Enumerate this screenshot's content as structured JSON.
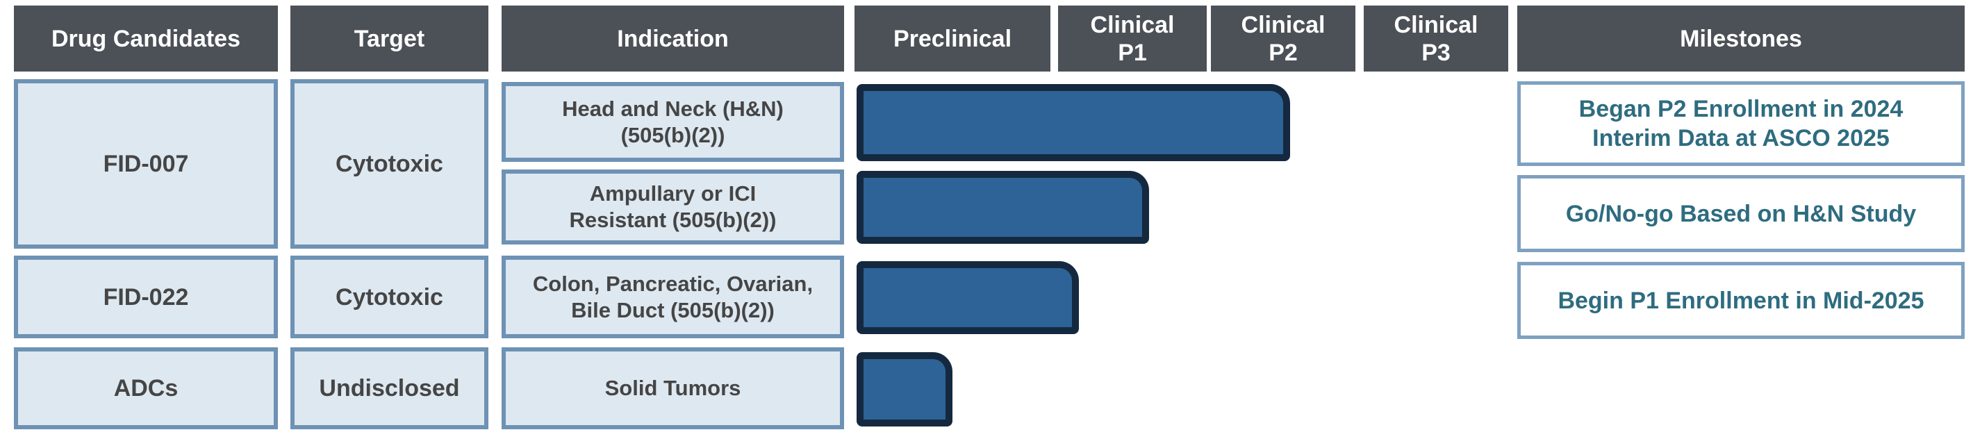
{
  "header": {
    "drug_candidates": "Drug Candidates",
    "target": "Target",
    "indication": "Indication",
    "preclinical": "Preclinical",
    "clinical_p1": "Clinical\nP1",
    "clinical_p2": "Clinical\nP2",
    "clinical_p3": "Clinical\nP3",
    "milestones": "Milestones"
  },
  "chart_data": {
    "type": "bar",
    "title": "Drug development pipeline",
    "x_categories": [
      "Preclinical",
      "Clinical P1",
      "Clinical P2",
      "Clinical P3"
    ],
    "progress_scale_note": "progress is measured in phase-column units: 1.0 = end of Preclinical, 2.0 = end of Clinical P1, 3.0 = end of Clinical P2, 4.0 = end of Clinical P3",
    "rows": [
      {
        "drug": "FID-007",
        "target": "Cytotoxic",
        "programs": [
          {
            "indication": "Head and Neck (H&N)\n(505(b)(2))",
            "progress": 2.55,
            "phase_reached": "Clinical P2",
            "milestone": "Began P2 Enrollment in 2024\nInterim Data at ASCO 2025"
          },
          {
            "indication": "Ampullary or ICI\nResistant (505(b)(2))",
            "progress": 1.61,
            "phase_reached": "Clinical P1",
            "milestone": "Go/No-go Based on H&N Study"
          }
        ]
      },
      {
        "drug": "FID-022",
        "target": "Cytotoxic",
        "programs": [
          {
            "indication": "Colon, Pancreatic, Ovarian,\nBile Duct (505(b)(2))",
            "progress": 1.14,
            "phase_reached": "Clinical P1",
            "milestone": "Begin P1 Enrollment in Mid-2025"
          }
        ]
      },
      {
        "drug": "ADCs",
        "target": "Undisclosed",
        "programs": [
          {
            "indication": "Solid Tumors",
            "progress": 0.5,
            "phase_reached": "Preclinical",
            "milestone": null
          }
        ]
      }
    ]
  },
  "colors": {
    "header_bg": "#4B5157",
    "header_text": "#FFFFFF",
    "cell_bg": "#DEE8F1",
    "cell_border": "#6D92B4",
    "cell_text": "#454545",
    "bar_fill": "#2D6396",
    "bar_border": "#14293F",
    "milestone_border": "#7FA1C1",
    "milestone_text": "#2E6C80"
  }
}
